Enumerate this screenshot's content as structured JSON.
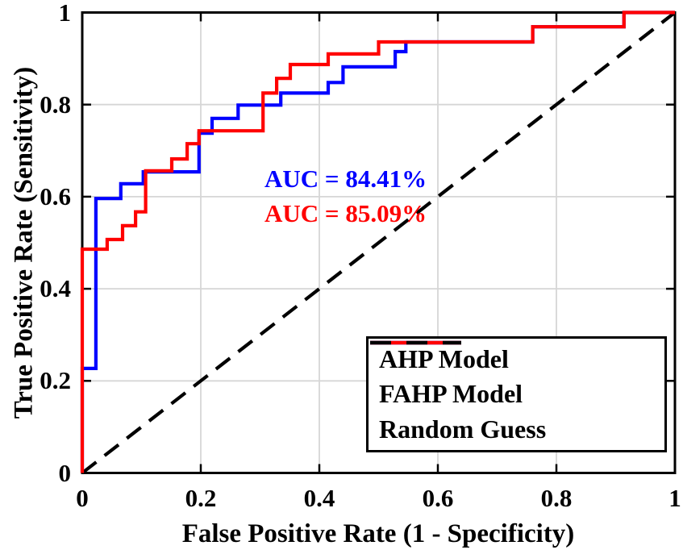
{
  "figure": {
    "background": "#ffffff",
    "axis_color": "#000000",
    "grid_color": "#d6d6d6"
  },
  "chart_data": {
    "type": "line",
    "subtype": "roc-step-curves",
    "title": "",
    "xlabel": "False Positive Rate (1 - Specificity)",
    "ylabel": "True Positive Rate (Sensitivity)",
    "xlim": [
      0,
      1
    ],
    "ylim": [
      0,
      1
    ],
    "grid": true,
    "legend_position": "bottom-right",
    "x_ticks": [
      {
        "value": 0,
        "label": "0"
      },
      {
        "value": 0.2,
        "label": "0.2"
      },
      {
        "value": 0.4,
        "label": "0.4"
      },
      {
        "value": 0.6,
        "label": "0.6"
      },
      {
        "value": 0.8,
        "label": "0.8"
      },
      {
        "value": 1,
        "label": "1"
      }
    ],
    "y_ticks": [
      {
        "value": 0,
        "label": "0"
      },
      {
        "value": 0.2,
        "label": "0.2"
      },
      {
        "value": 0.4,
        "label": "0.4"
      },
      {
        "value": 0.6,
        "label": "0.6"
      },
      {
        "value": 0.8,
        "label": "0.8"
      },
      {
        "value": 1,
        "label": "1"
      }
    ],
    "series": [
      {
        "name": "AHP Model",
        "color": "#0000ff",
        "style": "solid",
        "auc_percent": 84.41,
        "points": [
          [
            0,
            0
          ],
          [
            0,
            0.227
          ],
          [
            0.023,
            0.227
          ],
          [
            0.023,
            0.596
          ],
          [
            0.065,
            0.596
          ],
          [
            0.065,
            0.628
          ],
          [
            0.103,
            0.628
          ],
          [
            0.103,
            0.654
          ],
          [
            0.197,
            0.654
          ],
          [
            0.197,
            0.738
          ],
          [
            0.219,
            0.738
          ],
          [
            0.219,
            0.77
          ],
          [
            0.263,
            0.77
          ],
          [
            0.263,
            0.799
          ],
          [
            0.335,
            0.799
          ],
          [
            0.335,
            0.825
          ],
          [
            0.415,
            0.825
          ],
          [
            0.415,
            0.848
          ],
          [
            0.44,
            0.848
          ],
          [
            0.44,
            0.882
          ],
          [
            0.528,
            0.882
          ],
          [
            0.528,
            0.915
          ],
          [
            0.546,
            0.915
          ],
          [
            0.546,
            0.936
          ],
          [
            0.76,
            0.936
          ],
          [
            0.76,
            0.969
          ],
          [
            0.914,
            0.969
          ],
          [
            0.914,
            1
          ],
          [
            1,
            1
          ]
        ]
      },
      {
        "name": "FAHP Model",
        "color": "#ff0000",
        "style": "solid",
        "auc_percent": 85.09,
        "points": [
          [
            0,
            0
          ],
          [
            0,
            0.486
          ],
          [
            0.042,
            0.486
          ],
          [
            0.042,
            0.507
          ],
          [
            0.068,
            0.507
          ],
          [
            0.068,
            0.537
          ],
          [
            0.09,
            0.537
          ],
          [
            0.09,
            0.567
          ],
          [
            0.107,
            0.567
          ],
          [
            0.107,
            0.656
          ],
          [
            0.151,
            0.656
          ],
          [
            0.151,
            0.682
          ],
          [
            0.177,
            0.682
          ],
          [
            0.177,
            0.715
          ],
          [
            0.197,
            0.715
          ],
          [
            0.197,
            0.743
          ],
          [
            0.305,
            0.743
          ],
          [
            0.305,
            0.825
          ],
          [
            0.328,
            0.825
          ],
          [
            0.328,
            0.857
          ],
          [
            0.351,
            0.857
          ],
          [
            0.351,
            0.887
          ],
          [
            0.415,
            0.887
          ],
          [
            0.415,
            0.91
          ],
          [
            0.5,
            0.91
          ],
          [
            0.5,
            0.936
          ],
          [
            0.76,
            0.936
          ],
          [
            0.76,
            0.969
          ],
          [
            0.914,
            0.969
          ],
          [
            0.914,
            1
          ],
          [
            1,
            1
          ]
        ]
      },
      {
        "name": "Random Guess",
        "color": "#000000",
        "style": "dashed",
        "points": [
          [
            0,
            0
          ],
          [
            1,
            1
          ]
        ]
      }
    ],
    "annotations": [
      {
        "text": "AUC = 84.41%",
        "color": "#0000ff",
        "x": 0.3075,
        "y": 0.638
      },
      {
        "text": "AUC = 85.09%",
        "color": "#ff0000",
        "x": 0.3075,
        "y": 0.563
      }
    ],
    "legend": {
      "entries": [
        {
          "label": "AHP Model"
        },
        {
          "label": "FAHP Model"
        },
        {
          "label": "Random Guess"
        }
      ]
    }
  }
}
